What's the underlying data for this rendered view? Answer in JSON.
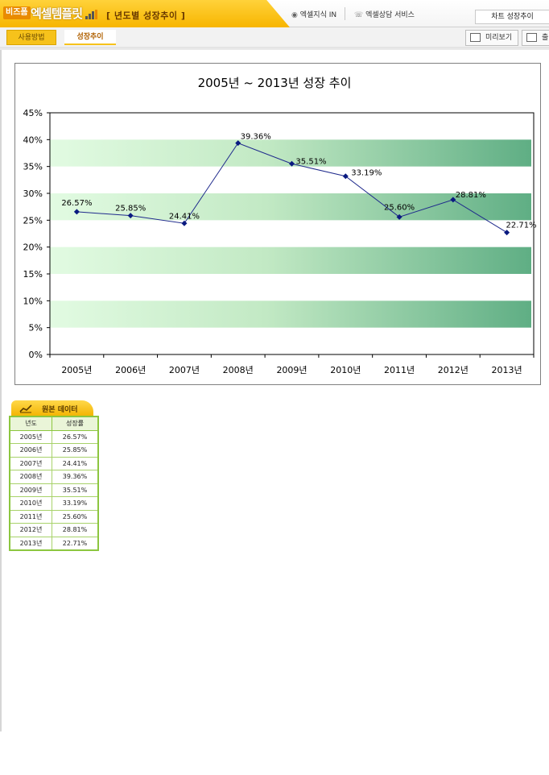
{
  "header": {
    "brand_badge": "비즈폼",
    "brand_name": "엑셀템플릿",
    "page_title": "[ 년도별 성장추이 ]",
    "nav_links": [
      "엑셀지식 IN",
      "엑셀상담 서비스"
    ],
    "chart_name": "차트 성장추이"
  },
  "tabs": {
    "help_label": "사용방법",
    "growth_label": "성장추이"
  },
  "toolbar": {
    "preview_label": "미리보기",
    "print_label": "출"
  },
  "chart_data": {
    "type": "line",
    "title": "2005년 ~ 2013년 성장 추이",
    "categories": [
      "2005년",
      "2006년",
      "2007년",
      "2008년",
      "2009년",
      "2010년",
      "2011년",
      "2012년",
      "2013년"
    ],
    "values": [
      26.57,
      25.85,
      24.41,
      39.36,
      35.51,
      33.19,
      25.6,
      28.81,
      22.71
    ],
    "data_labels": [
      "26.57%",
      "25.85%",
      "24.41%",
      "39.36%",
      "35.51%",
      "33.19%",
      "25.60%",
      "28.81%",
      "22.71%"
    ],
    "y_ticks": [
      "0%",
      "5%",
      "10%",
      "15%",
      "20%",
      "25%",
      "30%",
      "35%",
      "40%",
      "45%"
    ],
    "ylim": [
      0,
      45
    ],
    "band_ranges": [
      [
        5,
        10
      ],
      [
        15,
        20
      ],
      [
        25,
        30
      ],
      [
        35,
        40
      ]
    ],
    "colors": {
      "line": "#1f2a8c",
      "marker": "#0a1a80",
      "band_light": "#e2fbe2",
      "band_dark": "#5fae84"
    }
  },
  "table": {
    "tab_label": "원본 데이터",
    "headers": [
      "년도",
      "성장률"
    ],
    "rows": [
      [
        "2005년",
        "26.57%"
      ],
      [
        "2006년",
        "25.85%"
      ],
      [
        "2007년",
        "24.41%"
      ],
      [
        "2008년",
        "39.36%"
      ],
      [
        "2009년",
        "35.51%"
      ],
      [
        "2010년",
        "33.19%"
      ],
      [
        "2011년",
        "25.60%"
      ],
      [
        "2012년",
        "28.81%"
      ],
      [
        "2013년",
        "22.71%"
      ]
    ]
  }
}
